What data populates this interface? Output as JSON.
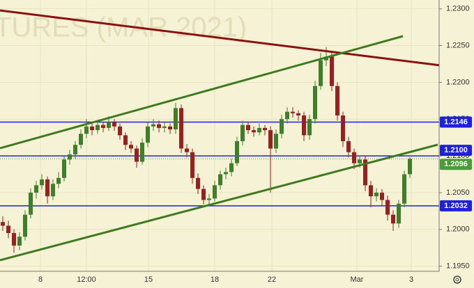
{
  "chart_data": {
    "type": "candlestick",
    "title": "TURES (MAR 2021)",
    "up_color": "#3f7f2a",
    "down_color": "#9c1f1f",
    "level_color": "#1f1fe0",
    "last_color": "#4c9a3a",
    "grid": true,
    "ylim": [
      1.1943,
      1.2312
    ],
    "yticks": [
      {
        "value": 1.195,
        "label": "1.1950"
      },
      {
        "value": 1.2,
        "label": "1.2000"
      },
      {
        "value": 1.205,
        "label": "1.2050"
      },
      {
        "value": 1.21,
        "label": "1.2100"
      },
      {
        "value": 1.215,
        "label": "1.2150"
      },
      {
        "value": 1.22,
        "label": "1.2200"
      },
      {
        "value": 1.225,
        "label": "1.2250"
      },
      {
        "value": 1.23,
        "label": "1.2300"
      }
    ],
    "xlabels": [
      "8",
      "12:00",
      "15",
      "18",
      "22",
      "Mar",
      "3"
    ],
    "levels": [
      1.2146,
      {
        "value": 1.21,
        "label": "1.2100"
      },
      1.2032
    ],
    "last_price": 1.2096,
    "open": [
      1.201,
      1.2005,
      1.1995,
      1.1978,
      1.199,
      1.202,
      1.205,
      1.206,
      1.2068,
      1.2045,
      1.2062,
      1.207,
      1.2095,
      1.2102,
      1.2115,
      1.213,
      1.214,
      1.2135,
      1.2142,
      1.2138,
      1.2146,
      1.214,
      1.2128,
      1.2115,
      1.211,
      1.2092,
      1.2118,
      1.214,
      1.2143,
      1.2138,
      1.214,
      1.2136,
      1.2165,
      1.211,
      1.2105,
      1.207,
      1.2055,
      1.204,
      1.2042,
      1.206,
      1.2075,
      1.2078,
      1.209,
      1.212,
      1.2142,
      1.2135,
      1.2132,
      1.2138,
      1.2135,
      1.211,
      1.213,
      1.215,
      1.216,
      1.2158,
      1.2155,
      1.2128,
      1.215,
      1.2195,
      1.223,
      1.2235,
      1.2195,
      1.2155,
      1.212,
      1.2105,
      1.209,
      1.2095,
      1.206,
      1.2045,
      1.205,
      1.204,
      1.202,
      1.2008,
      1.2035,
      1.2075
    ],
    "high": [
      1.2018,
      1.2012,
      1.2,
      1.1996,
      1.2026,
      1.2056,
      1.2066,
      1.2075,
      1.2072,
      1.2068,
      1.2078,
      1.21,
      1.2108,
      1.212,
      1.2136,
      1.215,
      1.2146,
      1.2148,
      1.2146,
      1.2154,
      1.215,
      1.2144,
      1.2132,
      1.212,
      1.2114,
      1.2124,
      1.2146,
      1.215,
      1.2148,
      1.2146,
      1.2144,
      1.2172,
      1.217,
      1.2116,
      1.211,
      1.2076,
      1.206,
      1.2048,
      1.2066,
      1.208,
      1.2084,
      1.2096,
      1.2126,
      1.2148,
      1.2146,
      1.214,
      1.2144,
      1.2142,
      1.214,
      1.2136,
      1.2156,
      1.2166,
      1.2166,
      1.2162,
      1.216,
      1.2156,
      1.2202,
      1.224,
      1.2248,
      1.224,
      1.22,
      1.216,
      1.2126,
      1.211,
      1.21,
      1.21,
      1.2066,
      1.2056,
      1.2055,
      1.2046,
      1.2026,
      1.204,
      1.208,
      1.2098
    ],
    "low": [
      1.1998,
      1.1988,
      1.1968,
      1.1972,
      1.1985,
      1.2015,
      1.2042,
      1.2054,
      1.2035,
      1.204,
      1.2056,
      1.2065,
      1.2088,
      1.2096,
      1.211,
      1.2124,
      1.2128,
      1.213,
      1.2132,
      1.2134,
      1.2134,
      1.2122,
      1.2108,
      1.2104,
      1.2084,
      1.2088,
      1.2112,
      1.2134,
      1.2132,
      1.2132,
      1.213,
      1.213,
      1.2104,
      1.2098,
      1.2062,
      1.2048,
      1.2034,
      1.2032,
      1.2038,
      1.2054,
      1.2068,
      1.2072,
      1.2086,
      1.2114,
      1.213,
      1.2126,
      1.2128,
      1.2128,
      1.205,
      1.2104,
      1.2124,
      1.2144,
      1.2152,
      1.2148,
      1.212,
      1.2122,
      1.2144,
      1.219,
      1.2222,
      1.2188,
      1.2148,
      1.2112,
      1.2098,
      1.2082,
      1.2084,
      1.2052,
      1.203,
      1.2038,
      1.2032,
      1.2012,
      1.1998,
      1.2002,
      1.203,
      1.207
    ],
    "close": [
      1.2005,
      1.1995,
      1.1978,
      1.199,
      1.202,
      1.205,
      1.206,
      1.2068,
      1.2045,
      1.2062,
      1.207,
      1.2095,
      1.2102,
      1.2115,
      1.213,
      1.214,
      1.2135,
      1.2142,
      1.2138,
      1.2146,
      1.214,
      1.2128,
      1.2115,
      1.211,
      1.2092,
      1.2118,
      1.214,
      1.2143,
      1.2138,
      1.214,
      1.2136,
      1.2165,
      1.211,
      1.2105,
      1.207,
      1.2055,
      1.204,
      1.2042,
      1.206,
      1.2075,
      1.2078,
      1.209,
      1.212,
      1.2142,
      1.2135,
      1.2132,
      1.2138,
      1.2135,
      1.211,
      1.213,
      1.215,
      1.216,
      1.2158,
      1.2155,
      1.2128,
      1.215,
      1.2195,
      1.223,
      1.2235,
      1.2195,
      1.2155,
      1.212,
      1.2105,
      1.209,
      1.2095,
      1.206,
      1.2045,
      1.205,
      1.204,
      1.202,
      1.2008,
      1.2035,
      1.2075,
      1.2096
    ]
  }
}
